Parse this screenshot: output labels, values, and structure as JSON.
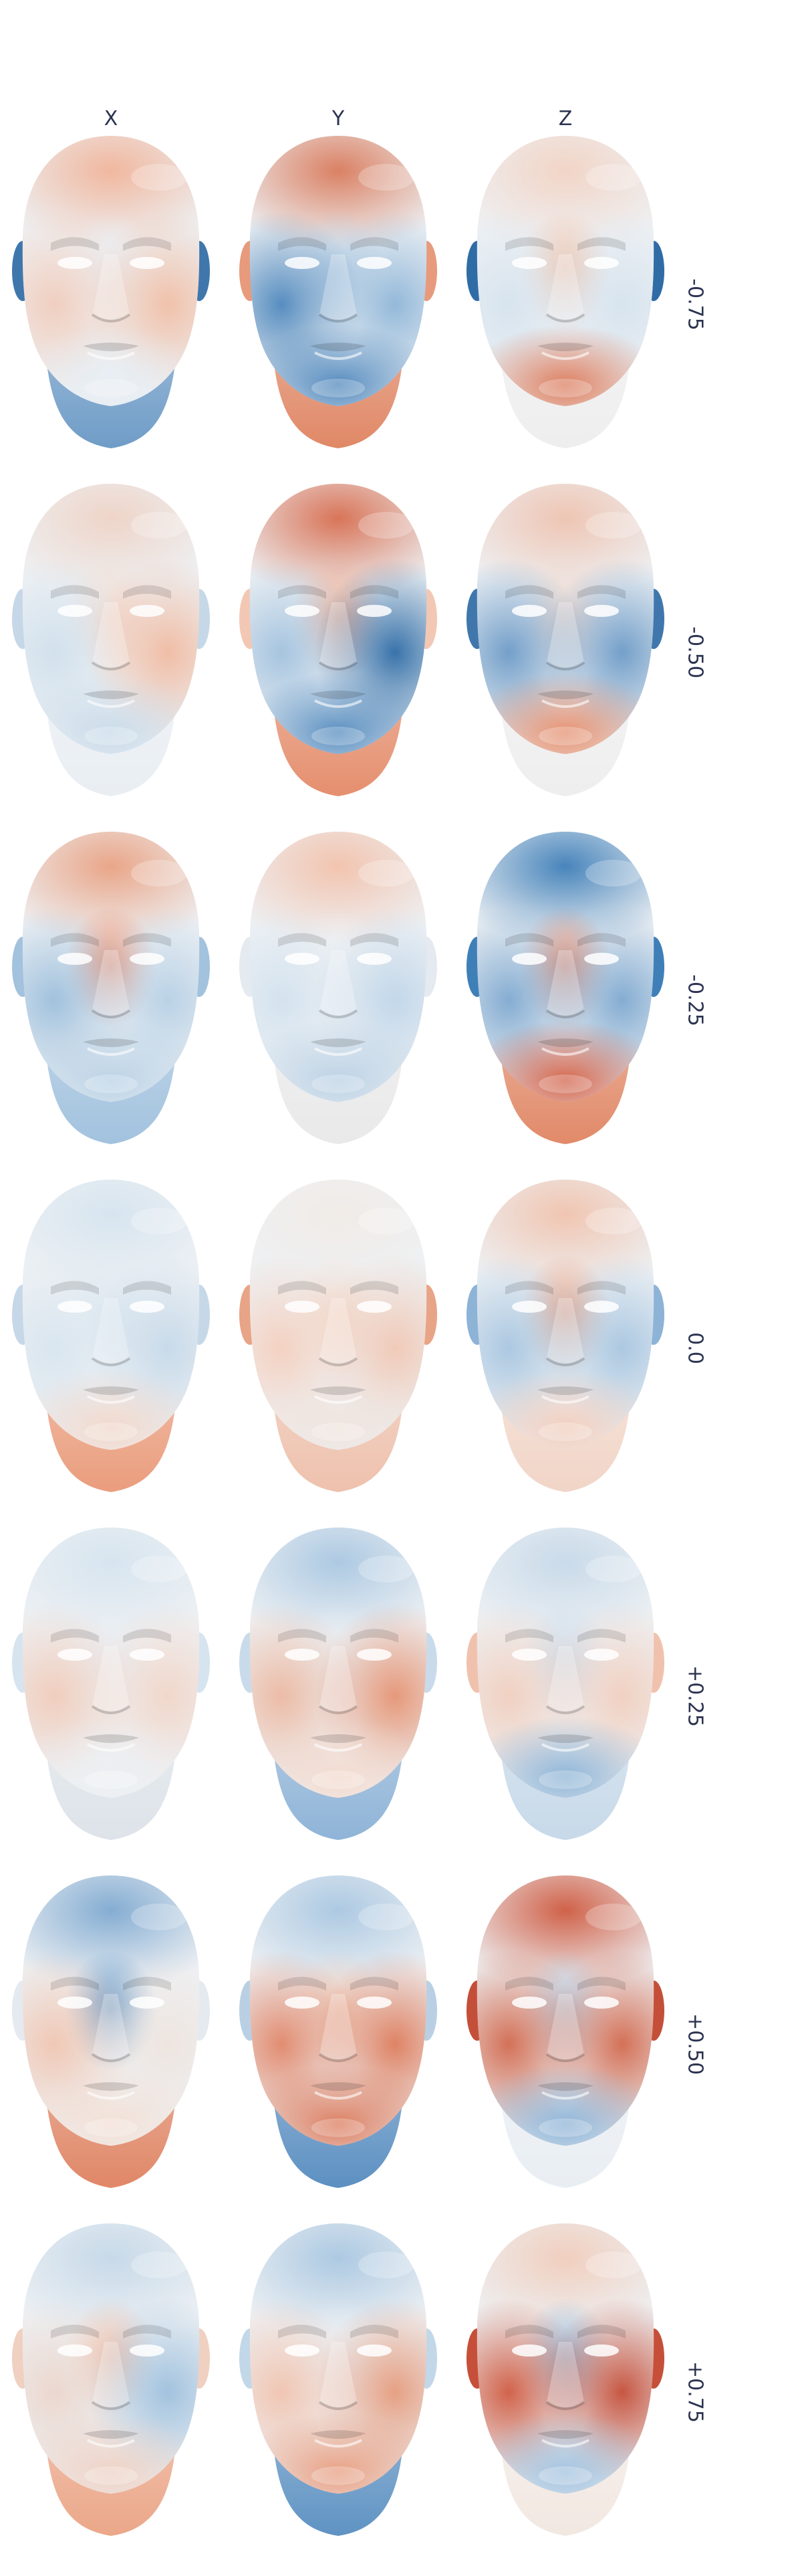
{
  "columns": [
    "X",
    "Y",
    "Z"
  ],
  "rows": [
    {
      "label": "-0.75",
      "tints": {
        "X": {
          "cranium": "#f0b49a",
          "face": "#e9eef3",
          "cheekL": "#f1cdbd",
          "cheekR": "#f0bfa7",
          "chin": "#e6edf3",
          "neck": "#6f9cc7",
          "ears": "#3f77ad"
        },
        "Y": {
          "cranium": "#d97b5c",
          "face": "#b9d0e4",
          "cheekL": "#4f88bd",
          "cheekR": "#8fb6d8",
          "chin": "#4a84bb",
          "neck": "#e08866",
          "ears": "#e79a7c"
        },
        "Z": {
          "cranium": "#f2d3c4",
          "face": "#f0c0a6",
          "cheekL": "#d6e3ee",
          "cheekR": "#d6e3ee",
          "chin": "#dc7a5a",
          "neck": "#eeeeee",
          "ears": "#2f6ca6"
        }
      }
    },
    {
      "label": "-0.50",
      "tints": {
        "X": {
          "cranium": "#eed3c6",
          "face": "#f3d9cc",
          "cheekL": "#d0e0ec",
          "cheekR": "#f0bba2",
          "chin": "#c8dae9",
          "neck": "#e9eef3",
          "ears": "#c6d8e8"
        },
        "Y": {
          "cranium": "#d76e50",
          "face": "#eea98c",
          "cheekL": "#a2c2de",
          "cheekR": "#2f6ca6",
          "chin": "#4f88bd",
          "neck": "#e58f6e",
          "ears": "#f2c8b4"
        },
        "Z": {
          "cranium": "#eec3b0",
          "face": "#f0d5c8",
          "cheekL": "#6d9bc7",
          "cheekR": "#6d9bc7",
          "chin": "#e58c6a",
          "neck": "#eeeeee",
          "ears": "#3f77ad"
        }
      }
    },
    {
      "label": "-0.25",
      "tints": {
        "X": {
          "cranium": "#e9a283",
          "face": "#e98b6b",
          "cheekL": "#9dbfdc",
          "cheekR": "#b7d0e5",
          "chin": "#b7d0e5",
          "neck": "#a2c2de",
          "ears": "#a2c2de"
        },
        "Y": {
          "cranium": "#f2c2ac",
          "face": "#eef0f2",
          "cheekL": "#d3e2ee",
          "cheekR": "#c0d6e9",
          "chin": "#b9d0e4",
          "neck": "#e9e9e9",
          "ears": "#e5eaf0"
        },
        "Z": {
          "cranium": "#3f7fb8",
          "face": "#e0876a",
          "cheekL": "#7fa9d0",
          "cheekR": "#7fa9d0",
          "chin": "#d25f45",
          "neck": "#e18a69",
          "ears": "#3f7fb8"
        }
      }
    },
    {
      "label": "0.0",
      "tints": {
        "X": {
          "cranium": "#d6e4ef",
          "face": "#dde8f1",
          "cheekL": "#d8e5ef",
          "cheekR": "#c6d9e9",
          "chin": "#f1d7ca",
          "neck": "#ea9d7d",
          "ears": "#c6d8e8"
        },
        "Y": {
          "cranium": "#f1ebe6",
          "face": "#f3dbcd",
          "cheekL": "#f4d0bf",
          "cheekR": "#f0c8b5",
          "chin": "#efe3dc",
          "neck": "#eec1ad",
          "ears": "#e8a486"
        },
        "Z": {
          "cranium": "#f0c3ae",
          "face": "#e89f80",
          "cheekL": "#a8c6e0",
          "cheekR": "#a8c6e0",
          "chin": "#f2cdbc",
          "neck": "#f1d5c7",
          "ears": "#8db3d6"
        }
      }
    },
    {
      "label": "+0.25",
      "tints": {
        "X": {
          "cranium": "#d6e4ef",
          "face": "#e9eef3",
          "cheekL": "#f0ccbb",
          "cheekR": "#f1d6c9",
          "chin": "#eceff2",
          "neck": "#dde3e9",
          "ears": "#d6e4ef"
        },
        "Y": {
          "cranium": "#a9c7e1",
          "face": "#e8edf2",
          "cheekL": "#ecb9a2",
          "cheekR": "#e59474",
          "chin": "#f3d9cc",
          "neck": "#8fb4d7",
          "ears": "#c9dbea"
        },
        "Z": {
          "cranium": "#c7d9e9",
          "face": "#c9daea",
          "cheekL": "#f1cfbf",
          "cheekR": "#f1cfbf",
          "chin": "#8bb2d5",
          "neck": "#c7d9e9",
          "ears": "#f0c2ad"
        }
      }
    },
    {
      "label": "+0.50",
      "tints": {
        "X": {
          "cranium": "#7fa9d0",
          "face": "#5d91c2",
          "cheekL": "#f0c6b2",
          "cheekR": "#eee4de",
          "chin": "#f3dfd4",
          "neck": "#e08767",
          "ears": "#e5eaf0"
        },
        "Y": {
          "cranium": "#a9c7e1",
          "face": "#eecab8",
          "cheekL": "#e1876a",
          "cheekR": "#de7d5d",
          "chin": "#db7656",
          "neck": "#5c90c2",
          "ears": "#b9d0e4"
        },
        "Z": {
          "cranium": "#ce5a40",
          "face": "#b3cde4",
          "cheekL": "#d26a4f",
          "cheekR": "#d26a4f",
          "chin": "#8ab1d5",
          "neck": "#e9eef3",
          "ears": "#c44f39"
        }
      }
    },
    {
      "label": "+0.75",
      "tints": {
        "X": {
          "cranium": "#c5d8e8",
          "face": "#f0bda6",
          "cheekL": "#ebd6cc",
          "cheekR": "#9ec0dd",
          "chin": "#eed0c2",
          "neck": "#eba789",
          "ears": "#f0d0c1"
        },
        "Y": {
          "cranium": "#a9c7e1",
          "face": "#e8edf2",
          "cheekL": "#f1c4b0",
          "cheekR": "#e59c7e",
          "chin": "#e89a7b",
          "neck": "#5f93c3",
          "ears": "#c2d7e8"
        },
        "Z": {
          "cranium": "#f0cdbc",
          "face": "#93b8da",
          "cheekL": "#cf5c43",
          "cheekR": "#c44f39",
          "chin": "#9fc0dd",
          "neck": "#f2e8e2",
          "ears": "#c64f39"
        }
      }
    }
  ]
}
